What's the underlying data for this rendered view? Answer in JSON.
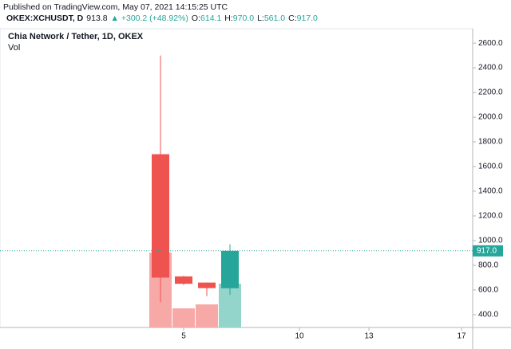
{
  "chart_data": {
    "type": "candlestick",
    "published": "Published on TradingView.com, May 07, 2021 14:15:25 UTC",
    "symbol": "OKEX:XCHUSDT, D",
    "last": "913.8",
    "change": "▲ +300.2 (+48.92%)",
    "ohlc_legend": [
      {
        "key": "O:",
        "value": "614.1"
      },
      {
        "key": "H:",
        "value": "970.0"
      },
      {
        "key": "L:",
        "value": "561.0"
      },
      {
        "key": "C:",
        "value": "917.0"
      }
    ],
    "title": "Chia Network / Tether, 1D, OKEX",
    "volume_label": "Vol",
    "x": [
      4,
      5,
      6,
      7
    ],
    "open": [
      1700,
      710,
      660,
      614.1
    ],
    "high": [
      2500,
      715,
      660,
      970
    ],
    "low": [
      500,
      640,
      550,
      561
    ],
    "close": [
      700,
      650,
      615,
      917
    ],
    "volume": [
      94,
      24,
      29,
      55
    ],
    "up_color": "#26a69a",
    "down_color": "#ef5350",
    "up_volume_color": "#93d4cb",
    "down_volume_color": "#f7a9a7",
    "price_line": {
      "value": 917,
      "label": "917.0"
    },
    "xlim": [
      -2.93,
      17.48
    ],
    "xticks": [
      5,
      10,
      13,
      17
    ],
    "ylim": [
      296,
      2717
    ],
    "yticks": [
      {
        "value": 400,
        "label": "400.0"
      },
      {
        "value": 600,
        "label": "600.0"
      },
      {
        "value": 800,
        "label": "800.0"
      },
      {
        "value": 1000,
        "label": "1000.0"
      },
      {
        "value": 1200,
        "label": "1200.0"
      },
      {
        "value": 1400,
        "label": "1400.0"
      },
      {
        "value": 1600,
        "label": "1600.0"
      },
      {
        "value": 1800,
        "label": "1800.0"
      },
      {
        "value": 2000,
        "label": "2000.0"
      },
      {
        "value": 2200,
        "label": "2200.0"
      },
      {
        "value": 2400,
        "label": "2400.0"
      },
      {
        "value": 2600,
        "label": "2600.0"
      }
    ]
  }
}
